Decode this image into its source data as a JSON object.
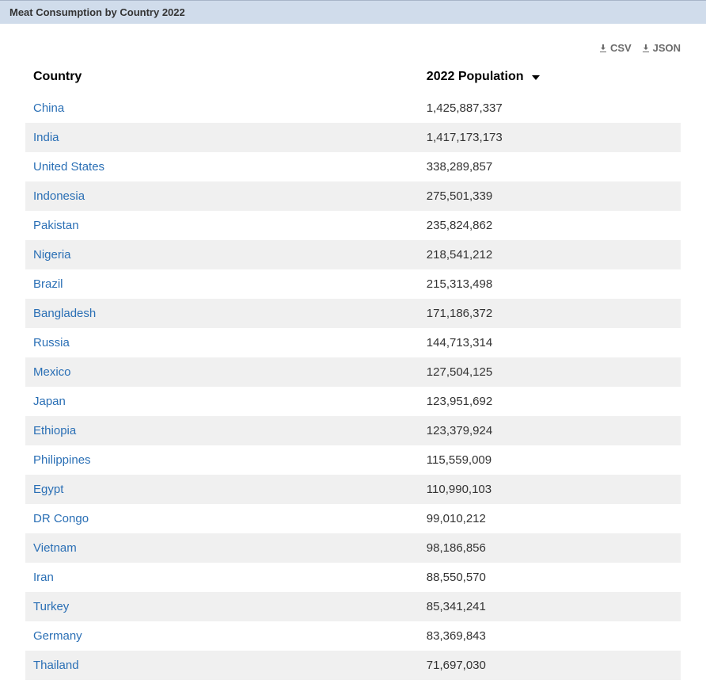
{
  "titleBar": {
    "title": "Meat Consumption by Country 2022"
  },
  "downloads": {
    "csv_label": "CSV",
    "json_label": "JSON"
  },
  "table": {
    "columns": {
      "country": "Country",
      "population": "2022 Population"
    },
    "sort": {
      "column": "population",
      "direction": "desc"
    },
    "rows": [
      {
        "country": "China",
        "population": "1,425,887,337"
      },
      {
        "country": "India",
        "population": "1,417,173,173"
      },
      {
        "country": "United States",
        "population": "338,289,857"
      },
      {
        "country": "Indonesia",
        "population": "275,501,339"
      },
      {
        "country": "Pakistan",
        "population": "235,824,862"
      },
      {
        "country": "Nigeria",
        "population": "218,541,212"
      },
      {
        "country": "Brazil",
        "population": "215,313,498"
      },
      {
        "country": "Bangladesh",
        "population": "171,186,372"
      },
      {
        "country": "Russia",
        "population": "144,713,314"
      },
      {
        "country": "Mexico",
        "population": "127,504,125"
      },
      {
        "country": "Japan",
        "population": "123,951,692"
      },
      {
        "country": "Ethiopia",
        "population": "123,379,924"
      },
      {
        "country": "Philippines",
        "population": "115,559,009"
      },
      {
        "country": "Egypt",
        "population": "110,990,103"
      },
      {
        "country": "DR Congo",
        "population": "99,010,212"
      },
      {
        "country": "Vietnam",
        "population": "98,186,856"
      },
      {
        "country": "Iran",
        "population": "88,550,570"
      },
      {
        "country": "Turkey",
        "population": "85,341,241"
      },
      {
        "country": "Germany",
        "population": "83,369,843"
      },
      {
        "country": "Thailand",
        "population": "71,697,030"
      }
    ]
  },
  "colors": {
    "title_bar_bg": "#d0dceb",
    "link_color": "#2a6fb5",
    "row_alt_bg": "#f0f0f0",
    "download_color": "#6b6b6b"
  }
}
